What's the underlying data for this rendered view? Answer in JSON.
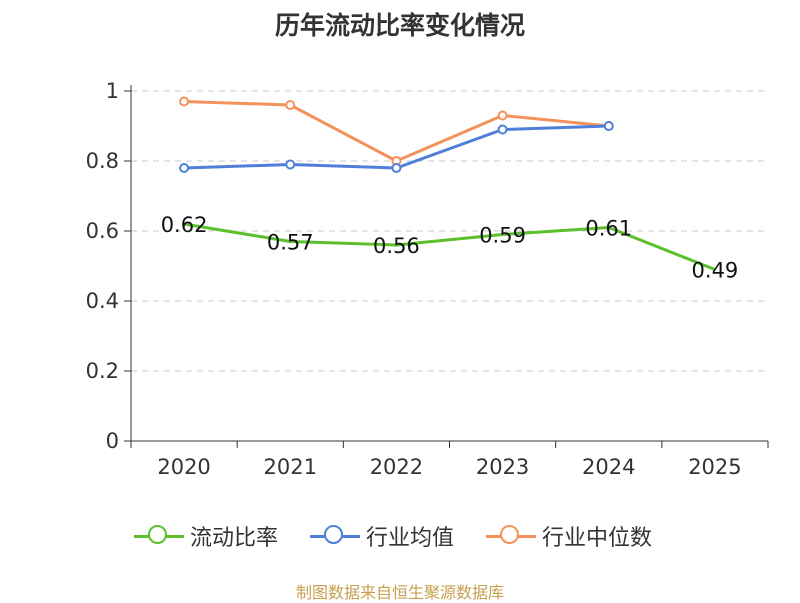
{
  "chart_data": {
    "type": "line",
    "title": "历年流动比率变化情况",
    "categories": [
      "2020",
      "2021",
      "2022",
      "2023",
      "2024",
      "2025"
    ],
    "ylim": [
      0,
      1
    ],
    "yticks": [
      0,
      0.2,
      0.4,
      0.6,
      0.8,
      1
    ],
    "ytick_labels": [
      "0",
      "0.2",
      "0.4",
      "0.6",
      "0.8",
      "1"
    ],
    "grid": true,
    "legend_position": "bottom",
    "series": [
      {
        "name": "流动比率",
        "color": "#5cc02c",
        "values": [
          0.62,
          0.57,
          0.56,
          0.59,
          0.61,
          0.49
        ],
        "labels": [
          "0.62",
          "0.57",
          "0.56",
          "0.59",
          "0.61",
          "0.49"
        ],
        "show_markers": false
      },
      {
        "name": "行业均值",
        "color": "#4f7fd8",
        "values": [
          0.78,
          0.79,
          0.78,
          0.89,
          0.9,
          null
        ],
        "show_markers": true
      },
      {
        "name": "行业中位数",
        "color": "#f5915a",
        "values": [
          0.97,
          0.96,
          0.8,
          0.93,
          0.9,
          null
        ],
        "show_markers": true
      }
    ]
  },
  "source": "制图数据来自恒生聚源数据库"
}
